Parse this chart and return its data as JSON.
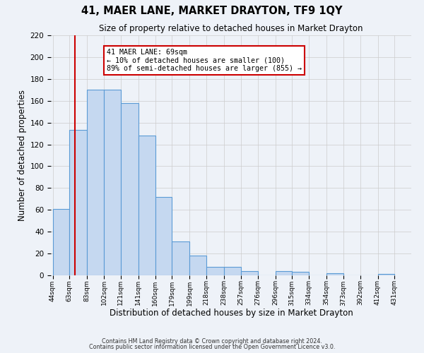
{
  "title": "41, MAER LANE, MARKET DRAYTON, TF9 1QY",
  "subtitle": "Size of property relative to detached houses in Market Drayton",
  "xlabel": "Distribution of detached houses by size in Market Drayton",
  "ylabel": "Number of detached properties",
  "bin_labels": [
    "44sqm",
    "63sqm",
    "83sqm",
    "102sqm",
    "121sqm",
    "141sqm",
    "160sqm",
    "179sqm",
    "199sqm",
    "218sqm",
    "238sqm",
    "257sqm",
    "276sqm",
    "296sqm",
    "315sqm",
    "334sqm",
    "354sqm",
    "373sqm",
    "392sqm",
    "412sqm",
    "431sqm"
  ],
  "bin_edges": [
    44,
    63,
    83,
    102,
    121,
    141,
    160,
    179,
    199,
    218,
    238,
    257,
    276,
    296,
    315,
    334,
    354,
    373,
    392,
    412,
    431
  ],
  "bar_heights": [
    61,
    133,
    170,
    170,
    158,
    128,
    72,
    31,
    18,
    8,
    8,
    4,
    0,
    4,
    3,
    0,
    2,
    0,
    0,
    1
  ],
  "bar_color": "#c5d8f0",
  "bar_edge_color": "#5b9bd5",
  "vline_x": 69,
  "vline_color": "#cc0000",
  "annotation_text": "41 MAER LANE: 69sqm\n← 10% of detached houses are smaller (100)\n89% of semi-detached houses are larger (855) →",
  "annotation_box_color": "#ffffff",
  "annotation_box_edge_color": "#cc0000",
  "ylim": [
    0,
    220
  ],
  "yticks": [
    0,
    20,
    40,
    60,
    80,
    100,
    120,
    140,
    160,
    180,
    200,
    220
  ],
  "grid_color": "#cccccc",
  "bg_color": "#eef2f8",
  "footer_line1": "Contains HM Land Registry data © Crown copyright and database right 2024.",
  "footer_line2": "Contains public sector information licensed under the Open Government Licence v3.0."
}
